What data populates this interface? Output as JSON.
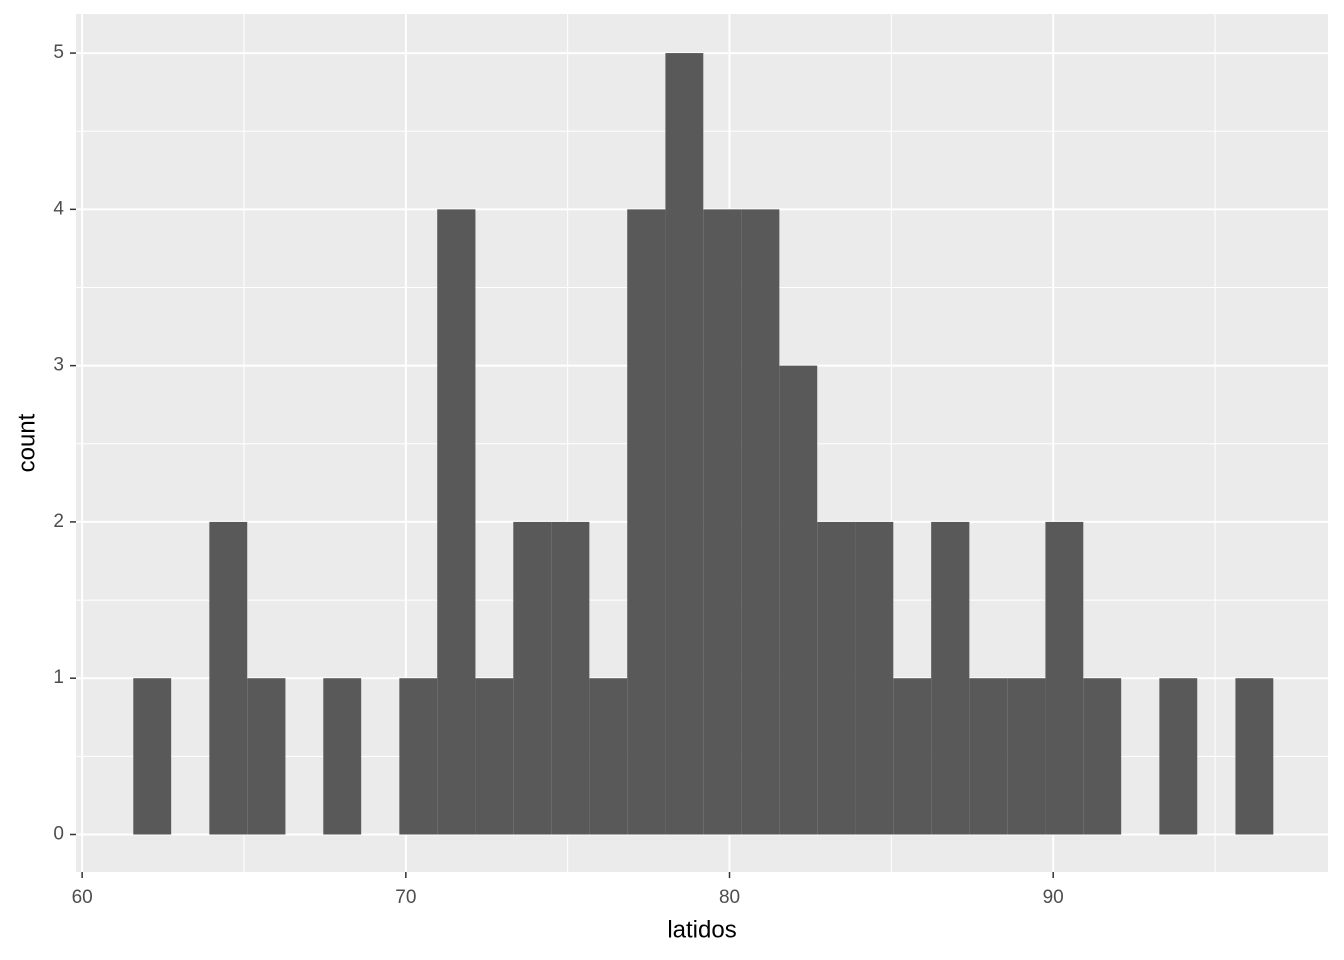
{
  "chart_data": {
    "type": "histogram",
    "x_label": "latidos",
    "y_label": "count",
    "bins": [
      61.58,
      62.75,
      63.93,
      65.1,
      66.28,
      67.45,
      68.62,
      69.8,
      70.97,
      72.15,
      73.32,
      74.49,
      75.67,
      76.84,
      78.02,
      79.19,
      80.36,
      81.54,
      82.71,
      83.89,
      85.06,
      86.23,
      87.41,
      88.58,
      89.76,
      90.93,
      92.1,
      93.28,
      94.45,
      95.63,
      96.8
    ],
    "values": [
      1,
      0,
      2,
      1,
      0,
      1,
      0,
      1,
      4,
      1,
      2,
      2,
      1,
      4,
      5,
      4,
      4,
      3,
      2,
      2,
      1,
      2,
      1,
      1,
      2,
      1,
      0,
      1,
      0,
      1
    ],
    "color": "#595959",
    "xlim": [
      59.81,
      98.49
    ],
    "xticks": [
      60,
      70,
      80,
      90
    ],
    "ylim": [
      -0.24,
      5.25
    ],
    "yticks": [
      0,
      1,
      2,
      3,
      4,
      5
    ],
    "grid": true
  }
}
